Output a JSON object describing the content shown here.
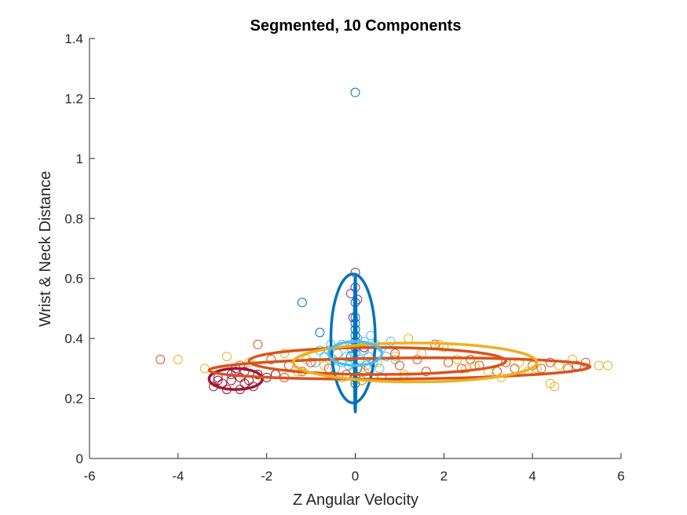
{
  "chart_data": {
    "type": "scatter",
    "title": "Segmented, 10 Components",
    "xlabel": "Z Angular Velocity",
    "ylabel": "Wrist & Neck Distance",
    "xlim": [
      -6,
      6
    ],
    "ylim": [
      0,
      1.4
    ],
    "xticks": [
      -6,
      -4,
      -2,
      0,
      2,
      4,
      6
    ],
    "yticks": [
      0,
      0.2,
      0.4,
      0.6,
      0.8,
      1,
      1.2,
      1.4
    ],
    "xtick_labels": [
      "-6",
      "-4",
      "-2",
      "0",
      "2",
      "4",
      "6"
    ],
    "ytick_labels": [
      "0",
      "0.2",
      "0.4",
      "0.6",
      "0.8",
      "1",
      "1.2",
      "1.4"
    ],
    "grid": false,
    "box": "left-bottom axes only",
    "colors": {
      "blue": "#0072BD",
      "orange": "#D95319",
      "yellow": "#EDB120",
      "purple": "#7E2F8E",
      "lightblue": "#4DBEEE",
      "darkred": "#A2142F",
      "axis": "#262626"
    },
    "series": [
      {
        "color": "#4DBEEE",
        "points": [
          [
            -0.6,
            0.36
          ],
          [
            -0.5,
            0.33
          ],
          [
            -0.4,
            0.35
          ],
          [
            -0.3,
            0.32
          ],
          [
            -0.2,
            0.34
          ],
          [
            -0.1,
            0.37
          ],
          [
            0.0,
            0.35
          ],
          [
            0.1,
            0.33
          ],
          [
            0.2,
            0.36
          ],
          [
            0.3,
            0.34
          ],
          [
            0.4,
            0.32
          ],
          [
            0.5,
            0.35
          ],
          [
            0.6,
            0.37
          ],
          [
            0.7,
            0.34
          ],
          [
            0.8,
            0.39
          ],
          [
            -0.8,
            0.36
          ],
          [
            -0.7,
            0.34
          ],
          [
            -0.3,
            0.38
          ],
          [
            0.2,
            0.39
          ],
          [
            0.35,
            0.41
          ],
          [
            -0.15,
            0.31
          ],
          [
            0.25,
            0.31
          ],
          [
            -0.45,
            0.3
          ],
          [
            0.55,
            0.3
          ],
          [
            0.9,
            0.33
          ],
          [
            -0.9,
            0.32
          ],
          [
            0.05,
            0.4
          ],
          [
            -0.05,
            0.29
          ],
          [
            0.45,
            0.38
          ],
          [
            -0.55,
            0.38
          ]
        ]
      },
      {
        "color": "#0072BD",
        "points": [
          [
            0.0,
            1.22
          ],
          [
            -1.2,
            0.52
          ],
          [
            -0.8,
            0.42
          ],
          [
            0.0,
            0.52
          ],
          [
            0.0,
            0.47
          ],
          [
            0.0,
            0.45
          ],
          [
            0.0,
            0.43
          ],
          [
            0.0,
            0.41
          ],
          [
            0.0,
            0.39
          ],
          [
            0.0,
            0.37
          ],
          [
            -0.1,
            0.34
          ],
          [
            0.05,
            0.3
          ],
          [
            0.0,
            0.27
          ],
          [
            0.0,
            0.25
          ]
        ]
      },
      {
        "color": "#7E2F8E",
        "points": [
          [
            0.0,
            0.62
          ],
          [
            -0.1,
            0.55
          ],
          [
            0.0,
            0.57
          ],
          [
            0.05,
            0.53
          ],
          [
            -0.05,
            0.47
          ],
          [
            -2.5,
            0.29
          ],
          [
            -2.8,
            0.28
          ],
          [
            -3.1,
            0.27
          ],
          [
            -2.2,
            0.28
          ],
          [
            -2.7,
            0.3
          ],
          [
            0.2,
            0.37
          ]
        ]
      },
      {
        "color": "#A2142F",
        "points": [
          [
            -3.2,
            0.24
          ],
          [
            -3.0,
            0.25
          ],
          [
            -2.8,
            0.26
          ],
          [
            -2.6,
            0.27
          ],
          [
            -2.4,
            0.26
          ],
          [
            -2.2,
            0.28
          ],
          [
            -2.9,
            0.23
          ],
          [
            -3.1,
            0.26
          ],
          [
            -2.7,
            0.29
          ],
          [
            -2.5,
            0.25
          ],
          [
            -2.0,
            0.27
          ],
          [
            -1.8,
            0.28
          ],
          [
            -2.3,
            0.24
          ],
          [
            -2.6,
            0.23
          ]
        ]
      },
      {
        "color": "#D95319",
        "points": [
          [
            -4.4,
            0.33
          ],
          [
            -2.2,
            0.38
          ],
          [
            -1.9,
            0.33
          ],
          [
            -1.5,
            0.31
          ],
          [
            -1.2,
            0.29
          ],
          [
            -1.0,
            0.32
          ],
          [
            -0.6,
            0.3
          ],
          [
            -0.2,
            0.28
          ],
          [
            0.3,
            0.3
          ],
          [
            0.6,
            0.27
          ],
          [
            1.0,
            0.31
          ],
          [
            1.4,
            0.33
          ],
          [
            1.8,
            0.38
          ],
          [
            2.1,
            0.32
          ],
          [
            2.4,
            0.3
          ],
          [
            2.8,
            0.31
          ],
          [
            3.2,
            0.29
          ],
          [
            3.6,
            0.3
          ],
          [
            4.0,
            0.31
          ],
          [
            4.4,
            0.32
          ],
          [
            4.8,
            0.3
          ],
          [
            5.2,
            0.32
          ],
          [
            -2.6,
            0.31
          ],
          [
            -1.6,
            0.27
          ],
          [
            0.9,
            0.35
          ],
          [
            1.6,
            0.29
          ],
          [
            2.6,
            0.33
          ],
          [
            3.4,
            0.32
          ],
          [
            4.2,
            0.3
          ],
          [
            5.0,
            0.31
          ]
        ]
      },
      {
        "color": "#EDB120",
        "points": [
          [
            -4.0,
            0.33
          ],
          [
            -2.9,
            0.34
          ],
          [
            -2.4,
            0.32
          ],
          [
            -1.6,
            0.35
          ],
          [
            -1.1,
            0.33
          ],
          [
            -0.7,
            0.31
          ],
          [
            -0.3,
            0.27
          ],
          [
            0.2,
            0.29
          ],
          [
            0.5,
            0.32
          ],
          [
            0.9,
            0.34
          ],
          [
            1.2,
            0.4
          ],
          [
            1.5,
            0.35
          ],
          [
            1.9,
            0.38
          ],
          [
            2.0,
            0.37
          ],
          [
            2.3,
            0.33
          ],
          [
            2.7,
            0.31
          ],
          [
            3.0,
            0.29
          ],
          [
            3.3,
            0.27
          ],
          [
            3.7,
            0.32
          ],
          [
            4.1,
            0.3
          ],
          [
            4.4,
            0.25
          ],
          [
            4.5,
            0.24
          ],
          [
            4.6,
            0.31
          ],
          [
            4.9,
            0.33
          ],
          [
            5.5,
            0.31
          ],
          [
            5.7,
            0.31
          ],
          [
            -1.3,
            0.29
          ],
          [
            0.0,
            0.26
          ],
          [
            1.1,
            0.28
          ],
          [
            2.5,
            0.3
          ],
          [
            3.9,
            0.29
          ],
          [
            -3.4,
            0.3
          ],
          [
            -0.5,
            0.33
          ]
        ]
      },
      {
        "color": "#77AC30",
        "points": [
          [
            0.15,
            0.26
          ]
        ]
      }
    ],
    "ellipses": [
      {
        "color": "#0072BD",
        "center": [
          -0.05,
          0.4
        ],
        "radius_x": 0.5,
        "radius_y": 0.215,
        "rotation_deg": 0
      },
      {
        "color": "#0072BD",
        "center": [
          0.0,
          0.38
        ],
        "radius_x": 0.02,
        "radius_y": 0.225,
        "rotation_deg": 0
      },
      {
        "color": "#A2142F",
        "center": [
          -2.7,
          0.265
        ],
        "radius_x": 0.6,
        "radius_y": 0.035,
        "rotation_deg": 0
      },
      {
        "color": "#D95319",
        "center": [
          1.0,
          0.3
        ],
        "radius_x": 4.3,
        "radius_y": 0.035,
        "rotation_deg": 0.55
      },
      {
        "color": "#D95319",
        "center": [
          0.5,
          0.325
        ],
        "radius_x": 2.9,
        "radius_y": 0.045,
        "rotation_deg": 0
      },
      {
        "color": "#EDB120",
        "center": [
          1.35,
          0.32
        ],
        "radius_x": 2.75,
        "radius_y": 0.065,
        "rotation_deg": 0
      },
      {
        "color": "#4DBEEE",
        "center": [
          0.0,
          0.35
        ],
        "radius_x": 0.6,
        "radius_y": 0.04,
        "rotation_deg": 0
      }
    ]
  }
}
